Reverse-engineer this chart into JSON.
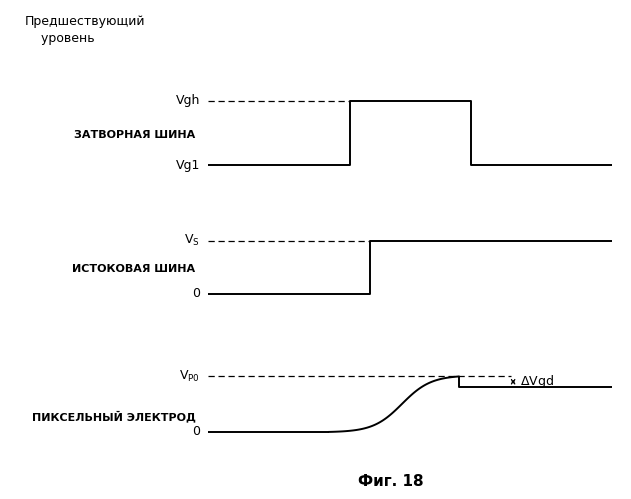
{
  "title": "Фиг. 18",
  "header_text": "Предшествующий\n    уровень",
  "label1": "ЗАТВОРНАЯ ШИНА",
  "label2": "ИСТОКОВАЯ ШИНА",
  "label3": "ПИКСЕЛЬНЫЙ ЭЛЕКТРОД",
  "bg_color": "#ffffff",
  "line_color": "#000000",
  "fig_width": 6.31,
  "fig_height": 4.99,
  "vgh_label": "Vgh",
  "vgl_label": "Vg1",
  "vs_label": "V_S",
  "vp0_label": "V_P0",
  "zero_label": "0",
  "delta_label": "ΔVgd"
}
